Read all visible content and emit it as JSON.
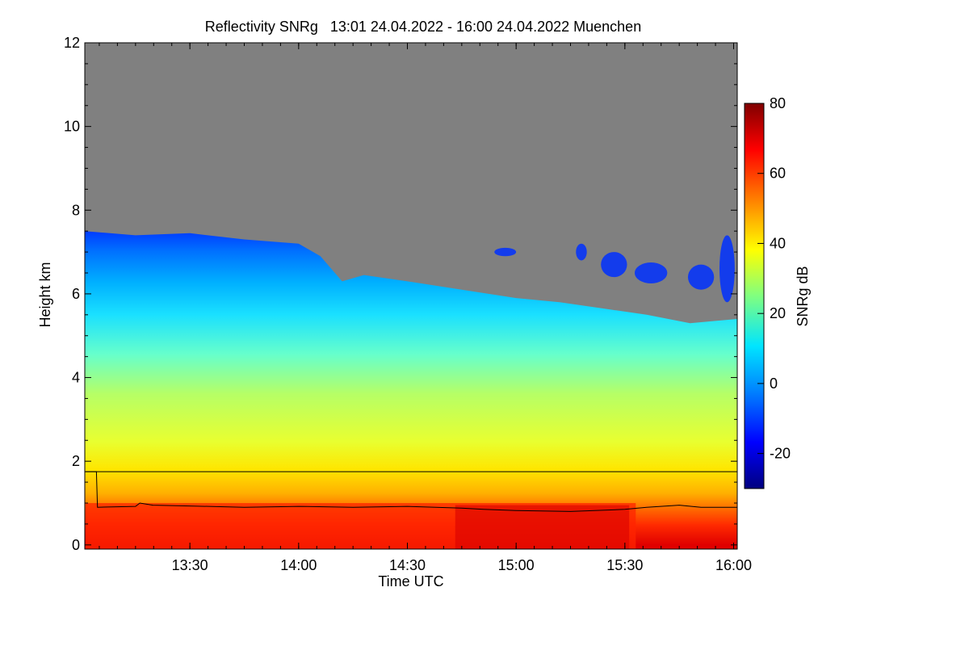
{
  "chart_data": {
    "type": "heatmap",
    "title": "Reflectivity SNRg",
    "time_range": "13:01 24.04.2022 - 16:00 24.04.2022",
    "location": "Muenchen",
    "xlabel": "Time UTC",
    "ylabel": "Height km",
    "x_ticks": [
      "13:30",
      "14:00",
      "14:30",
      "15:00",
      "15:30",
      "16:00"
    ],
    "x_tick_hours": [
      13.5,
      14.0,
      14.5,
      15.0,
      15.5,
      16.0
    ],
    "xlim_hours": [
      13.0167,
      16.0167
    ],
    "y_ticks": [
      "0",
      "2",
      "4",
      "6",
      "8",
      "10",
      "12"
    ],
    "y_tick_values": [
      0,
      2,
      4,
      6,
      8,
      10,
      12
    ],
    "ylim": [
      -0.1,
      12.0
    ],
    "colorbar": {
      "label": "SNRg dB",
      "ticks": [
        "-20",
        "0",
        "20",
        "40",
        "60",
        "80"
      ],
      "tick_values": [
        -20,
        0,
        20,
        40,
        60,
        80
      ],
      "range": [
        -30,
        80
      ],
      "colors": [
        "#00007f",
        "#0000ff",
        "#0080ff",
        "#00e5ff",
        "#80ff80",
        "#ffff00",
        "#ff8000",
        "#ff0000",
        "#7f0000"
      ]
    },
    "background_color": "#808080",
    "cloud_top_km": [
      {
        "t": 13.02,
        "h": 7.5
      },
      {
        "t": 13.25,
        "h": 7.4
      },
      {
        "t": 13.5,
        "h": 7.45
      },
      {
        "t": 13.75,
        "h": 7.3
      },
      {
        "t": 14.0,
        "h": 7.2
      },
      {
        "t": 14.1,
        "h": 6.9
      },
      {
        "t": 14.2,
        "h": 6.3
      },
      {
        "t": 14.3,
        "h": 6.45
      },
      {
        "t": 14.5,
        "h": 6.3
      },
      {
        "t": 14.75,
        "h": 6.1
      },
      {
        "t": 15.0,
        "h": 5.9
      },
      {
        "t": 15.2,
        "h": 5.8
      },
      {
        "t": 15.4,
        "h": 5.65
      },
      {
        "t": 15.6,
        "h": 5.5
      },
      {
        "t": 15.8,
        "h": 5.3
      },
      {
        "t": 16.0,
        "h": 5.4
      }
    ],
    "horizontal_line_km": 1.75,
    "boundary_layer_km": [
      {
        "t": 13.02,
        "h": 1.75
      },
      {
        "t": 13.07,
        "h": 1.75
      },
      {
        "t": 13.075,
        "h": 0.9
      },
      {
        "t": 13.25,
        "h": 0.92
      },
      {
        "t": 13.27,
        "h": 1.0
      },
      {
        "t": 13.33,
        "h": 0.95
      },
      {
        "t": 13.5,
        "h": 0.93
      },
      {
        "t": 13.75,
        "h": 0.9
      },
      {
        "t": 14.0,
        "h": 0.92
      },
      {
        "t": 14.25,
        "h": 0.9
      },
      {
        "t": 14.5,
        "h": 0.92
      },
      {
        "t": 14.75,
        "h": 0.88
      },
      {
        "t": 14.85,
        "h": 0.85
      },
      {
        "t": 15.0,
        "h": 0.82
      },
      {
        "t": 15.25,
        "h": 0.8
      },
      {
        "t": 15.5,
        "h": 0.85
      },
      {
        "t": 15.6,
        "h": 0.9
      },
      {
        "t": 15.75,
        "h": 0.95
      },
      {
        "t": 15.85,
        "h": 0.9
      },
      {
        "t": 16.0167,
        "h": 0.9
      }
    ]
  }
}
